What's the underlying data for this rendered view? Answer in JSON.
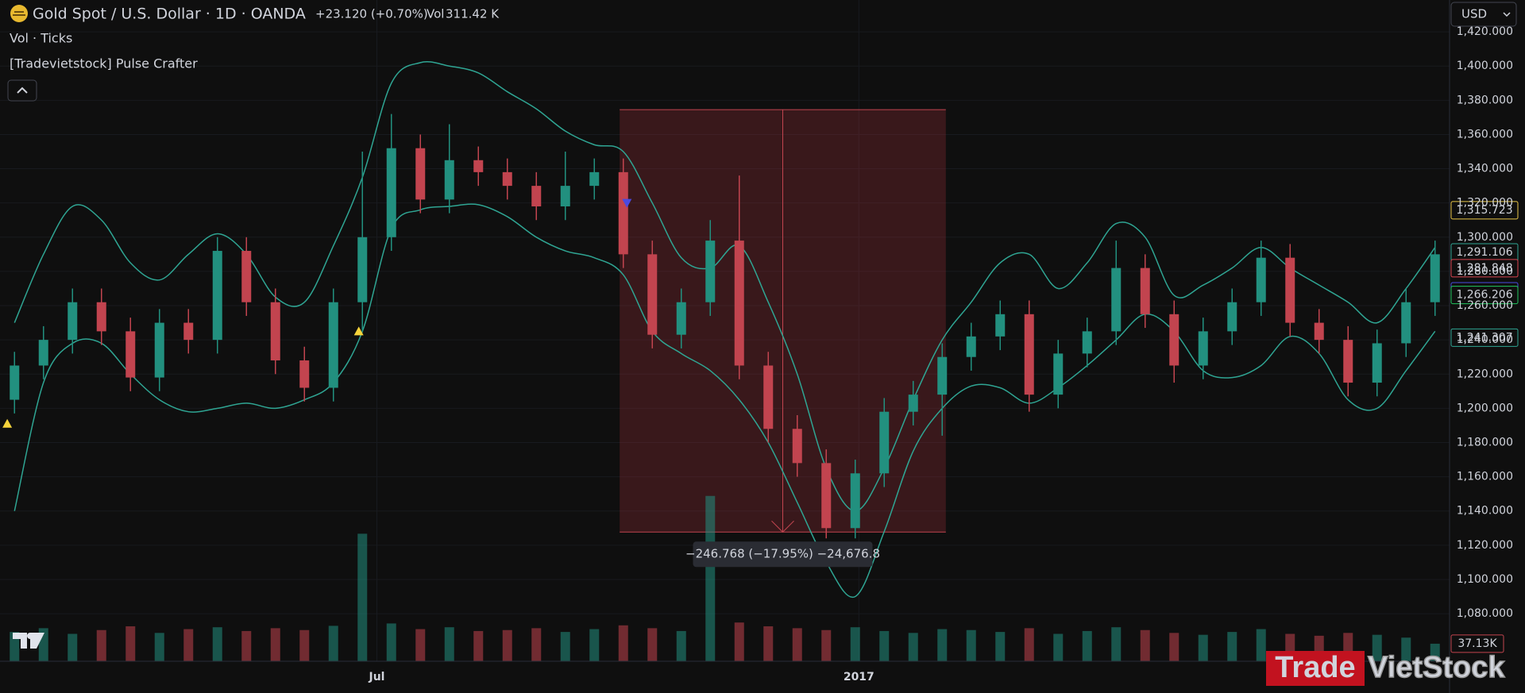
{
  "header": {
    "title": "Gold Spot / U.S. Dollar · 1D · OANDA",
    "change": "+23.120 (+0.70%)",
    "volume_label": "Vol",
    "volume_value": "311.42 K",
    "currency": "USD"
  },
  "indicators": [
    "Vol · Ticks",
    "[Tradevietstock] Pulse Crafter"
  ],
  "watermark": {
    "part1": "Trade",
    "part2": "VietStock"
  },
  "chart_data": {
    "type": "candlestick",
    "xlim": [
      0,
      400
    ],
    "xticks": [
      {
        "value": 104,
        "label": "Jul"
      },
      {
        "value": 237,
        "label": "2017"
      }
    ],
    "ylim": [
      1052.2,
      1438.6
    ],
    "yticks": [
      {
        "value": 1080,
        "label": "1,080.000"
      },
      {
        "value": 1100,
        "label": "1,100.000"
      },
      {
        "value": 1120,
        "label": "1,120.000"
      },
      {
        "value": 1140,
        "label": "1,140.000"
      },
      {
        "value": 1160,
        "label": "1,160.000"
      },
      {
        "value": 1180,
        "label": "1,180.000"
      },
      {
        "value": 1200,
        "label": "1,200.000"
      },
      {
        "value": 1220,
        "label": "1,220.000"
      },
      {
        "value": 1240,
        "label": "1,240.000"
      },
      {
        "value": 1260,
        "label": "1,260.000"
      },
      {
        "value": 1280,
        "label": "1,280.000"
      },
      {
        "value": 1300,
        "label": "1,300.000"
      },
      {
        "value": 1320,
        "label": "1,320.000"
      },
      {
        "value": 1340,
        "label": "1,340.000"
      },
      {
        "value": 1360,
        "label": "1,360.000"
      },
      {
        "value": 1380,
        "label": "1,380.000"
      },
      {
        "value": 1400,
        "label": "1,400.000"
      },
      {
        "value": 1420,
        "label": "1,420.000"
      }
    ],
    "up_color": "#22907f",
    "down_color": "#c2444f",
    "x": [
      4,
      12,
      20,
      28,
      36,
      44,
      52,
      60,
      68,
      76,
      84,
      92,
      100,
      108,
      116,
      124,
      132,
      140,
      148,
      156,
      164,
      172,
      180,
      188,
      196,
      204,
      212,
      220,
      228,
      236,
      244,
      252,
      260,
      268,
      276,
      284,
      292,
      300,
      308,
      316,
      324,
      332,
      340,
      348,
      356,
      364,
      372,
      380,
      388,
      396
    ],
    "open": [
      1205,
      1225,
      1240,
      1262,
      1245,
      1218,
      1250,
      1240,
      1292,
      1262,
      1228,
      1212,
      1262,
      1300,
      1352,
      1322,
      1345,
      1338,
      1330,
      1318,
      1330,
      1338,
      1290,
      1243,
      1262,
      1298,
      1225,
      1188,
      1168,
      1130,
      1162,
      1198,
      1208,
      1230,
      1242,
      1255,
      1208,
      1232,
      1245,
      1282,
      1255,
      1225,
      1245,
      1262,
      1288,
      1250,
      1240,
      1215,
      1238,
      1262
    ],
    "high": [
      1233,
      1248,
      1270,
      1270,
      1253,
      1258,
      1258,
      1300,
      1300,
      1270,
      1236,
      1270,
      1350,
      1372,
      1360,
      1366,
      1353,
      1346,
      1338,
      1350,
      1346,
      1346,
      1298,
      1270,
      1310,
      1336,
      1233,
      1196,
      1176,
      1170,
      1206,
      1216,
      1238,
      1250,
      1263,
      1263,
      1240,
      1253,
      1298,
      1290,
      1263,
      1253,
      1270,
      1298,
      1296,
      1258,
      1248,
      1246,
      1270,
      1298
    ],
    "low": [
      1197,
      1217,
      1232,
      1237,
      1210,
      1210,
      1232,
      1232,
      1254,
      1220,
      1204,
      1204,
      1245,
      1292,
      1314,
      1314,
      1330,
      1322,
      1310,
      1310,
      1322,
      1282,
      1235,
      1235,
      1254,
      1217,
      1180,
      1160,
      1124,
      1124,
      1154,
      1190,
      1184,
      1222,
      1234,
      1198,
      1200,
      1224,
      1237,
      1247,
      1215,
      1217,
      1237,
      1254,
      1242,
      1232,
      1207,
      1207,
      1230,
      1254
    ],
    "close": [
      1225,
      1240,
      1262,
      1245,
      1218,
      1250,
      1240,
      1292,
      1262,
      1228,
      1212,
      1262,
      1300,
      1352,
      1322,
      1345,
      1338,
      1330,
      1318,
      1330,
      1338,
      1290,
      1243,
      1262,
      1298,
      1225,
      1188,
      1168,
      1130,
      1162,
      1198,
      1208,
      1230,
      1242,
      1255,
      1208,
      1232,
      1245,
      1282,
      1255,
      1225,
      1245,
      1262,
      1288,
      1250,
      1240,
      1215,
      1238,
      1262,
      1290
    ],
    "volume_lim": [
      0,
      1400
    ],
    "volume": [
      62,
      70,
      58,
      66,
      74,
      60,
      68,
      72,
      64,
      70,
      66,
      75,
      270,
      80,
      68,
      72,
      64,
      66,
      70,
      62,
      68,
      76,
      70,
      64,
      350,
      82,
      74,
      70,
      66,
      72,
      64,
      60,
      68,
      66,
      62,
      70,
      58,
      64,
      72,
      66,
      60,
      56,
      62,
      68,
      58,
      54,
      60,
      56,
      50,
      37.13
    ],
    "volume_tag": {
      "value": 37.13,
      "label": "37.13K"
    },
    "upper_band": {
      "color": "#2fa593",
      "values": [
        1250,
        1290,
        1318,
        1310,
        1285,
        1275,
        1290,
        1302,
        1290,
        1265,
        1262,
        1295,
        1335,
        1390,
        1402,
        1400,
        1396,
        1385,
        1375,
        1362,
        1354,
        1350,
        1320,
        1288,
        1282,
        1295,
        1262,
        1220,
        1165,
        1140,
        1165,
        1205,
        1240,
        1262,
        1285,
        1290,
        1270,
        1285,
        1308,
        1300,
        1266,
        1272,
        1282,
        1294,
        1282,
        1272,
        1262,
        1250,
        1270,
        1294
      ]
    },
    "lower_band": {
      "color": "#2fa593",
      "values": [
        1140,
        1215,
        1238,
        1238,
        1220,
        1205,
        1198,
        1200,
        1203,
        1200,
        1205,
        1215,
        1245,
        1305,
        1316,
        1318,
        1319,
        1312,
        1300,
        1292,
        1288,
        1278,
        1245,
        1232,
        1222,
        1205,
        1180,
        1145,
        1110,
        1090,
        1128,
        1175,
        1200,
        1213,
        1212,
        1203,
        1212,
        1225,
        1240,
        1255,
        1245,
        1222,
        1218,
        1225,
        1242,
        1232,
        1205,
        1200,
        1222,
        1245
      ]
    },
    "signals": [
      {
        "x": 2,
        "price": 1191,
        "direction": "up",
        "color": "#f5d33b"
      },
      {
        "x": 99,
        "price": 1245,
        "direction": "up",
        "color": "#f5d33b"
      },
      {
        "x": 173,
        "price": 1320,
        "direction": "down",
        "color": "#4a4ae0"
      }
    ],
    "measure": {
      "x_start": 171,
      "x_end": 261,
      "x_mid": 216,
      "top": 1374.5,
      "bottom": 1127.7,
      "label": "−246.768 (−17.95%) −24,676.8",
      "color": "#8a2a33"
    },
    "price_tags": [
      {
        "value": 1315.723,
        "label": "1,315.723",
        "color": "#e8c547",
        "filled": false
      },
      {
        "value": 1291.106,
        "label": "1,291.106",
        "color": "#2fa593",
        "filled": false
      },
      {
        "value": 1281.848,
        "label": "1,281.848",
        "color": "#d9434f",
        "filled": false
      },
      {
        "value": 1268.372,
        "label": "1,268.372",
        "color": "#4a4ae0",
        "filled": false
      },
      {
        "value": 1266.206,
        "label": "1,266.206",
        "color": "#22c55e",
        "filled": false
      },
      {
        "value": 1241.307,
        "label": "1,241.307",
        "color": "#2fa593",
        "filled": false
      }
    ]
  }
}
